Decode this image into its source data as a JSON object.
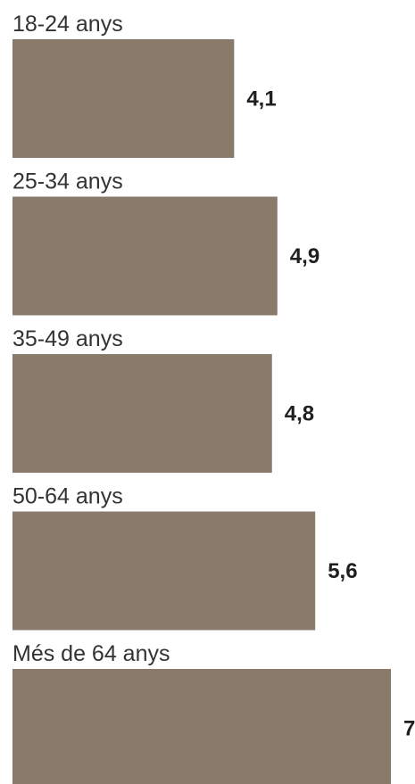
{
  "chart_data": {
    "type": "bar",
    "orientation": "horizontal",
    "categories": [
      "18-24 anys",
      "25-34 anys",
      "35-49 anys",
      "50-64 anys",
      "Més de 64 anys"
    ],
    "values": [
      4.1,
      4.9,
      4.8,
      5.6,
      7
    ],
    "value_labels": [
      "4,1",
      "4,9",
      "4,8",
      "5,6",
      "7"
    ],
    "bar_color": "#8a7a69",
    "xlim": [
      0,
      7.0
    ],
    "grid": false,
    "legend": "none"
  }
}
